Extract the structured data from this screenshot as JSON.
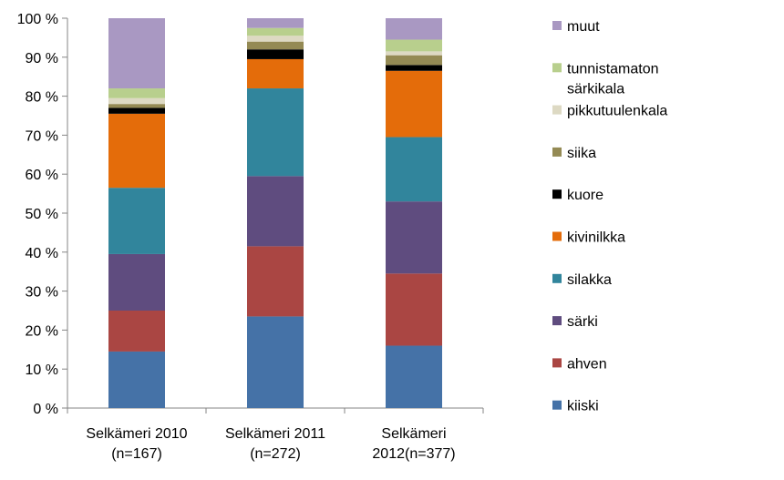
{
  "chart_data": {
    "type": "bar",
    "stacked": true,
    "percent": true,
    "categories": [
      [
        "Selkämeri 2010",
        "(n=167)"
      ],
      [
        "Selkämeri 2011",
        "(n=272)"
      ],
      [
        "Selkämeri",
        "2012(n=377)"
      ]
    ],
    "ylim": [
      0,
      100
    ],
    "yticks": [
      0,
      10,
      20,
      30,
      40,
      50,
      60,
      70,
      80,
      90,
      100
    ],
    "ytick_labels": [
      "0 %",
      "10 %",
      "20 %",
      "30 %",
      "40 %",
      "50 %",
      "60 %",
      "70 %",
      "80 %",
      "90 %",
      "100 %"
    ],
    "grid": false,
    "legend_position": "right",
    "series": [
      {
        "name": "kiiski",
        "color": "#4572a7",
        "values": [
          14.5,
          23.5,
          16.0
        ]
      },
      {
        "name": "ahven",
        "color": "#aa4643",
        "values": [
          10.5,
          18.0,
          18.5
        ]
      },
      {
        "name": "särki",
        "color": "#5f4c7f",
        "values": [
          14.5,
          18.0,
          18.5
        ]
      },
      {
        "name": "silakka",
        "color": "#31859c",
        "values": [
          17.0,
          22.5,
          16.5
        ]
      },
      {
        "name": "kivinilkka",
        "color": "#e46c0a",
        "values": [
          19.0,
          7.5,
          17.0
        ]
      },
      {
        "name": "kuore",
        "color": "#000000",
        "values": [
          1.5,
          2.5,
          1.5
        ]
      },
      {
        "name": "siika",
        "color": "#948a54",
        "values": [
          1.0,
          2.0,
          2.5
        ]
      },
      {
        "name": "pikkutuulenkala",
        "color": "#ddd9c3",
        "values": [
          1.5,
          1.5,
          1.0
        ]
      },
      {
        "name": "tunnistamaton särkikala",
        "legend_lines": [
          "tunnistamaton",
          "särkikala"
        ],
        "color": "#b8cf8d",
        "values": [
          2.5,
          2.0,
          3.0
        ]
      },
      {
        "name": "muut",
        "color": "#a998c2",
        "values": [
          18.0,
          2.5,
          5.5
        ]
      }
    ]
  }
}
